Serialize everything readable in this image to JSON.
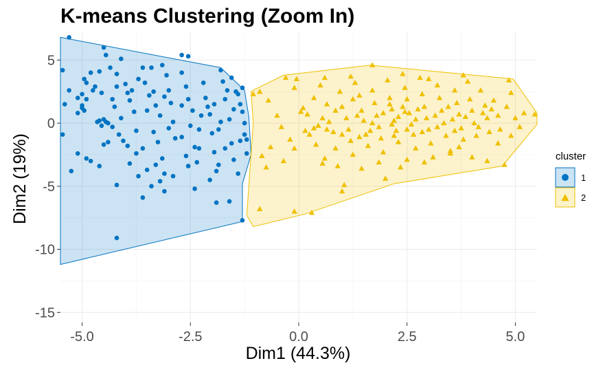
{
  "chart_data": {
    "type": "scatter",
    "title": "K-means Clustering (Zoom In)",
    "xlabel": "Dim1 (44.3%)",
    "ylabel": "Dim2 (19%)",
    "xlim": [
      -5.5,
      5.5
    ],
    "ylim": [
      -15.8,
      7.2
    ],
    "x_ticks": [
      -5.0,
      -2.5,
      0.0,
      2.5,
      5.0
    ],
    "x_tick_labels": [
      "-5.0",
      "-2.5",
      "0.0",
      "2.5",
      "5.0"
    ],
    "y_ticks": [
      -15,
      -10,
      -5,
      0,
      5
    ],
    "y_tick_labels": [
      "-15",
      "-10",
      "-5",
      "0",
      "5"
    ],
    "grid": true,
    "legend": {
      "title": "cluster",
      "position": "right",
      "items": [
        "1",
        "2"
      ]
    },
    "series": [
      {
        "name": "1",
        "color": "#0073C2",
        "fill": "#0073C2",
        "marker": "circle",
        "hull": [
          [
            -5.5,
            6.8
          ],
          [
            -1.8,
            4.4
          ],
          [
            -1.25,
            2.6
          ],
          [
            -1.15,
            0.5
          ],
          [
            -1.1,
            -2.5
          ],
          [
            -1.3,
            -4.8
          ],
          [
            -1.3,
            -7.8
          ],
          [
            -5.5,
            -11.2
          ]
        ],
        "points": [
          [
            -5.3,
            6.8
          ],
          [
            -5.45,
            4.2
          ],
          [
            -5.3,
            2.6
          ],
          [
            -5.4,
            1.5
          ],
          [
            -5.1,
            0.8
          ],
          [
            -5.45,
            -0.9
          ],
          [
            -4.9,
            3.2
          ],
          [
            -4.9,
            1.9
          ],
          [
            -5.0,
            1.4
          ],
          [
            -4.95,
            1.0
          ],
          [
            -4.7,
            2.9
          ],
          [
            -4.6,
            4.1
          ],
          [
            -4.55,
            2.4
          ],
          [
            -4.65,
            0.1
          ],
          [
            -4.5,
            -1.7
          ],
          [
            -4.6,
            -3.4
          ],
          [
            -4.8,
            -3.0
          ],
          [
            -5.1,
            -2.4
          ],
          [
            -5.25,
            -3.8
          ],
          [
            -4.9,
            -2.8
          ],
          [
            -4.35,
            4.4
          ],
          [
            -4.2,
            3.9
          ],
          [
            -4.1,
            5.1
          ],
          [
            -4.3,
            1.9
          ],
          [
            -4.25,
            1.3
          ],
          [
            -4.1,
            0.4
          ],
          [
            -4.3,
            -0.3
          ],
          [
            -4.05,
            -1.4
          ],
          [
            -4.2,
            -4.9
          ],
          [
            -4.2,
            -9.1
          ],
          [
            -3.85,
            2.6
          ],
          [
            -3.9,
            1.8
          ],
          [
            -3.8,
            0.9
          ],
          [
            -3.75,
            -0.6
          ],
          [
            -3.75,
            -2.4
          ],
          [
            -3.6,
            -2.0
          ],
          [
            -3.5,
            -3.7
          ],
          [
            -3.4,
            4.4
          ],
          [
            -3.55,
            3.2
          ],
          [
            -3.45,
            2.2
          ],
          [
            -3.3,
            1.4
          ],
          [
            -3.2,
            0.6
          ],
          [
            -3.35,
            -0.7
          ],
          [
            -3.25,
            -1.5
          ],
          [
            -3.15,
            -2.8
          ],
          [
            -3.05,
            3.8
          ],
          [
            -3.0,
            2.6
          ],
          [
            -2.95,
            1.6
          ],
          [
            -2.9,
            0.1
          ],
          [
            -2.85,
            -1.2
          ],
          [
            -2.9,
            -4.2
          ],
          [
            -2.7,
            4.0
          ],
          [
            -2.6,
            2.9
          ],
          [
            -2.55,
            1.9
          ],
          [
            -2.45,
            1.0
          ],
          [
            -2.5,
            -0.2
          ],
          [
            -2.4,
            -1.9
          ],
          [
            -2.35,
            -3.1
          ],
          [
            -2.2,
            3.2
          ],
          [
            -2.15,
            2.0
          ],
          [
            -2.05,
            0.7
          ],
          [
            -2.0,
            -0.8
          ],
          [
            -1.95,
            -2.3
          ],
          [
            -1.9,
            -3.8
          ],
          [
            -1.8,
            4.2
          ],
          [
            -1.75,
            3.3
          ],
          [
            -1.7,
            1.9
          ],
          [
            -1.6,
            0.3
          ],
          [
            -1.55,
            -1.6
          ],
          [
            -1.5,
            -2.9
          ],
          [
            -1.4,
            2.3
          ],
          [
            -1.35,
            1.5
          ],
          [
            -1.3,
            0.9
          ],
          [
            -1.25,
            0.0
          ],
          [
            -1.25,
            -0.9
          ],
          [
            -1.2,
            -2.4
          ],
          [
            -1.4,
            -4.0
          ],
          [
            -1.3,
            -7.7
          ],
          [
            -1.6,
            -6.2
          ],
          [
            -1.9,
            -6.3
          ],
          [
            -2.4,
            -5.2
          ],
          [
            -3.1,
            -5.4
          ],
          [
            -3.4,
            -5.0
          ],
          [
            -3.6,
            -5.9
          ],
          [
            -3.2,
            -4.6
          ],
          [
            -3.7,
            -4.2
          ],
          [
            -3.9,
            -3.2
          ],
          [
            -4.4,
            -1.5
          ],
          [
            -4.45,
            0.1
          ],
          [
            -4.5,
            0.3
          ],
          [
            -4.4,
            0.0
          ],
          [
            -4.0,
            3.1
          ],
          [
            -3.7,
            3.5
          ],
          [
            -3.5,
            1.0
          ],
          [
            -3.0,
            -0.4
          ],
          [
            -2.7,
            -1.1
          ],
          [
            -2.3,
            -0.5
          ],
          [
            -2.1,
            1.3
          ],
          [
            -1.95,
            1.5
          ],
          [
            -1.65,
            2.6
          ],
          [
            -1.55,
            3.6
          ],
          [
            -2.55,
            5.3
          ],
          [
            -2.7,
            5.4
          ],
          [
            -3.15,
            4.6
          ],
          [
            -3.6,
            4.4
          ],
          [
            -4.45,
            5.4
          ],
          [
            -4.5,
            6.0
          ],
          [
            -4.8,
            4.0
          ],
          [
            -5.0,
            2.3
          ],
          [
            -4.75,
            2.6
          ],
          [
            -5.0,
            1.2
          ],
          [
            -4.6,
            0.2
          ],
          [
            -4.55,
            -0.2
          ],
          [
            -4.15,
            -0.9
          ],
          [
            -3.95,
            -1.8
          ],
          [
            -3.3,
            -3.3
          ],
          [
            -3.1,
            -4.0
          ],
          [
            -2.6,
            -2.6
          ],
          [
            -2.3,
            -2.0
          ],
          [
            -1.85,
            -3.3
          ],
          [
            -2.05,
            -4.5
          ],
          [
            -2.55,
            -3.4
          ],
          [
            -1.7,
            -2.0
          ],
          [
            -1.85,
            -0.5
          ],
          [
            -1.5,
            1.1
          ],
          [
            -1.35,
            -1.4
          ],
          [
            -1.2,
            -1.3
          ],
          [
            -1.3,
            2.8
          ],
          [
            -1.45,
            2.5
          ],
          [
            -1.8,
            0.1
          ],
          [
            -2.25,
            0.6
          ],
          [
            -2.7,
            1.4
          ],
          [
            -3.1,
            2.1
          ],
          [
            -3.35,
            2.5
          ],
          [
            -3.95,
            2.4
          ],
          [
            -4.2,
            2.9
          ],
          [
            -4.95,
            3.5
          ],
          [
            -5.1,
            2.0
          ]
        ]
      },
      {
        "name": "2",
        "color": "#EFC000",
        "fill": "#EFC000",
        "marker": "triangle",
        "hull": [
          [
            -1.1,
            2.5
          ],
          [
            -1.0,
            2.7
          ],
          [
            -0.35,
            3.8
          ],
          [
            1.65,
            4.6
          ],
          [
            4.95,
            3.5
          ],
          [
            5.5,
            0.8
          ],
          [
            5.5,
            -0.1
          ],
          [
            4.7,
            -3.4
          ],
          [
            2.2,
            -4.8
          ],
          [
            0.15,
            -7.2
          ],
          [
            -1.05,
            -8.2
          ],
          [
            -1.2,
            -7.3
          ],
          [
            -1.05,
            0.0
          ]
        ],
        "points": [
          [
            -1.05,
            2.3
          ],
          [
            -0.9,
            2.5
          ],
          [
            -0.7,
            1.8
          ],
          [
            -0.5,
            0.6
          ],
          [
            -0.4,
            -0.3
          ],
          [
            -0.2,
            -1.3
          ],
          [
            -0.65,
            -1.9
          ],
          [
            -0.85,
            -2.6
          ],
          [
            -0.75,
            -3.5
          ],
          [
            -0.35,
            -3.0
          ],
          [
            -0.1,
            -2.0
          ],
          [
            -0.9,
            -6.8
          ],
          [
            -0.1,
            -7.0
          ],
          [
            0.3,
            -7.1
          ],
          [
            -0.3,
            3.6
          ],
          [
            -0.1,
            2.8
          ],
          [
            0.1,
            1.2
          ],
          [
            0.2,
            0.7
          ],
          [
            0.35,
            -0.4
          ],
          [
            0.4,
            -1.7
          ],
          [
            0.55,
            -3.2
          ],
          [
            0.35,
            2.0
          ],
          [
            0.5,
            3.0
          ],
          [
            0.65,
            1.5
          ],
          [
            0.7,
            0.1
          ],
          [
            0.8,
            -0.7
          ],
          [
            0.85,
            -2.0
          ],
          [
            0.95,
            2.5
          ],
          [
            1.0,
            1.3
          ],
          [
            1.1,
            0.4
          ],
          [
            1.15,
            -0.5
          ],
          [
            1.2,
            -1.4
          ],
          [
            1.25,
            -2.5
          ],
          [
            1.05,
            -4.9
          ],
          [
            1.0,
            -5.4
          ],
          [
            1.3,
            3.2
          ],
          [
            1.4,
            2.2
          ],
          [
            1.45,
            1.0
          ],
          [
            1.5,
            0.2
          ],
          [
            1.55,
            -0.9
          ],
          [
            1.6,
            -1.8
          ],
          [
            1.7,
            4.6
          ],
          [
            1.7,
            2.6
          ],
          [
            1.75,
            1.6
          ],
          [
            1.8,
            0.6
          ],
          [
            1.85,
            -0.3
          ],
          [
            1.9,
            -1.2
          ],
          [
            1.95,
            -2.3
          ],
          [
            2.05,
            3.4
          ],
          [
            2.1,
            2.0
          ],
          [
            2.15,
            1.1
          ],
          [
            2.2,
            0.2
          ],
          [
            2.25,
            -0.6
          ],
          [
            2.3,
            -1.5
          ],
          [
            2.35,
            -3.5
          ],
          [
            2.45,
            2.8
          ],
          [
            2.5,
            1.9
          ],
          [
            2.55,
            0.8
          ],
          [
            2.6,
            -0.1
          ],
          [
            2.65,
            -0.9
          ],
          [
            2.7,
            -2.0
          ],
          [
            2.8,
            3.6
          ],
          [
            2.85,
            2.3
          ],
          [
            2.9,
            1.3
          ],
          [
            2.95,
            0.4
          ],
          [
            3.0,
            -0.5
          ],
          [
            3.05,
            -1.6
          ],
          [
            3.1,
            -2.7
          ],
          [
            3.2,
            3.0
          ],
          [
            3.25,
            2.0
          ],
          [
            3.3,
            1.0
          ],
          [
            3.35,
            0.0
          ],
          [
            3.4,
            -1.0
          ],
          [
            3.5,
            -2.2
          ],
          [
            3.6,
            2.6
          ],
          [
            3.65,
            1.6
          ],
          [
            3.7,
            0.7
          ],
          [
            3.75,
            -0.4
          ],
          [
            3.8,
            -1.3
          ],
          [
            3.9,
            3.3
          ],
          [
            3.95,
            1.9
          ],
          [
            4.0,
            1.0
          ],
          [
            4.05,
            0.0
          ],
          [
            4.1,
            -1.0
          ],
          [
            4.2,
            2.6
          ],
          [
            4.3,
            1.4
          ],
          [
            4.35,
            0.4
          ],
          [
            4.4,
            -0.7
          ],
          [
            4.5,
            1.8
          ],
          [
            4.6,
            0.6
          ],
          [
            4.65,
            -0.5
          ],
          [
            4.75,
            -3.3
          ],
          [
            4.8,
            1.3
          ],
          [
            4.85,
            3.4
          ],
          [
            4.9,
            2.4
          ],
          [
            5.0,
            0.4
          ],
          [
            5.1,
            -0.3
          ],
          [
            5.2,
            0.8
          ],
          [
            5.45,
            0.7
          ],
          [
            3.8,
            3.8
          ],
          [
            3.0,
            3.5
          ],
          [
            2.4,
            3.9
          ],
          [
            1.2,
            3.7
          ],
          [
            0.6,
            3.6
          ],
          [
            -0.05,
            3.5
          ],
          [
            0.05,
            0.9
          ],
          [
            0.25,
            -0.9
          ],
          [
            0.6,
            -2.8
          ],
          [
            1.45,
            -3.6
          ],
          [
            0.9,
            -3.4
          ],
          [
            2.0,
            -4.4
          ],
          [
            2.5,
            -2.9
          ],
          [
            1.85,
            -3.1
          ],
          [
            2.9,
            -3.1
          ],
          [
            3.5,
            -2.4
          ],
          [
            3.7,
            -1.9
          ],
          [
            4.0,
            -2.7
          ],
          [
            4.35,
            -3.0
          ],
          [
            4.6,
            -1.6
          ],
          [
            4.9,
            -1.0
          ],
          [
            2.15,
            -0.1
          ],
          [
            2.3,
            0.5
          ],
          [
            2.45,
            0.9
          ],
          [
            2.7,
            0.3
          ],
          [
            2.75,
            1.1
          ],
          [
            2.4,
            1.3
          ],
          [
            2.1,
            1.5
          ],
          [
            1.95,
            0.8
          ],
          [
            1.7,
            0.0
          ],
          [
            1.35,
            0.6
          ],
          [
            1.25,
            1.9
          ],
          [
            0.85,
            1.0
          ],
          [
            0.55,
            0.4
          ],
          [
            0.45,
            -0.2
          ],
          [
            0.15,
            -0.6
          ],
          [
            3.15,
            0.6
          ],
          [
            3.45,
            1.3
          ],
          [
            3.55,
            0.3
          ],
          [
            3.85,
            0.5
          ],
          [
            4.25,
            0.8
          ],
          [
            4.45,
            1.1
          ],
          [
            4.15,
            -0.3
          ],
          [
            3.6,
            -0.6
          ],
          [
            3.2,
            -0.3
          ],
          [
            2.85,
            -0.7
          ],
          [
            2.5,
            -0.5
          ],
          [
            2.2,
            -1.0
          ],
          [
            1.65,
            -0.6
          ],
          [
            1.4,
            -1.1
          ],
          [
            1.0,
            -0.9
          ],
          [
            0.65,
            -0.5
          ]
        ]
      }
    ]
  }
}
